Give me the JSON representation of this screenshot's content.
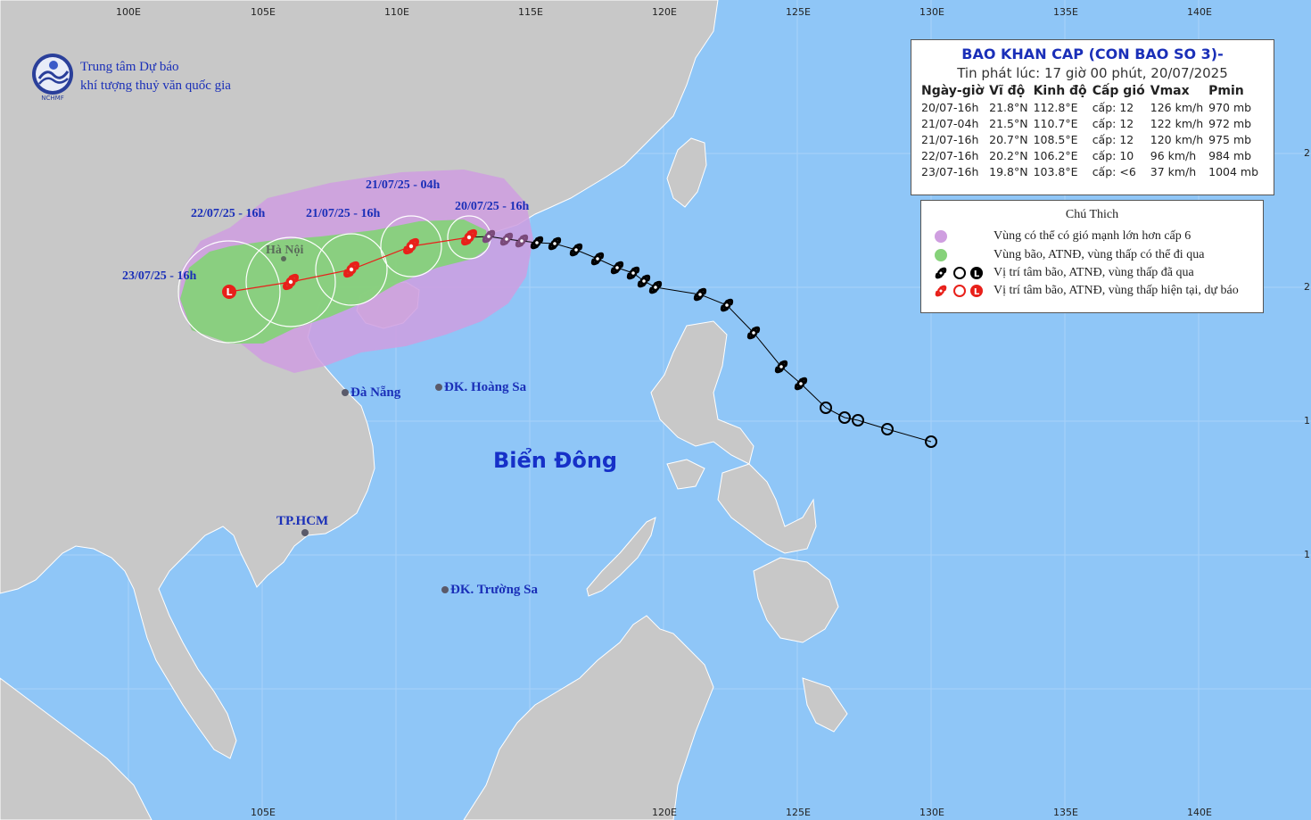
{
  "map": {
    "lon_labels": [
      "100E",
      "105E",
      "110E",
      "115E",
      "120E",
      "125E",
      "130E",
      "135E",
      "140E"
    ],
    "lat_labels": [
      "2",
      "2",
      "1",
      "1"
    ],
    "colors": {
      "sea": "#8fc6f7",
      "land": "#c8c8c8",
      "strong_wind_zone": "#cf9ee0",
      "storm_zone": "#8ad17a",
      "past_track": "#000000",
      "forecast_track": "#e8201a"
    }
  },
  "org": {
    "line1": "Trung tâm Dự báo",
    "line2": "khí tượng thuỷ văn quốc gia",
    "logo_text": "NCHMF"
  },
  "bulletin": {
    "title": "BAO KHAN CAP (CON BAO SO 3)-",
    "issued": "Tin phát lúc: 17 giờ 00 phút, 20/07/2025",
    "headers": [
      "Ngày-giờ",
      "Vĩ độ",
      "Kinh độ",
      "Cấp gió",
      "Vmax",
      "Pmin"
    ],
    "rows": [
      [
        "20/07-16h",
        "21.8°N",
        "112.8°E",
        "cấp: 12",
        "126 km/h",
        "970 mb"
      ],
      [
        "21/07-04h",
        "21.5°N",
        "110.7°E",
        "cấp: 12",
        "122 km/h",
        "972 mb"
      ],
      [
        "21/07-16h",
        "20.7°N",
        "108.5°E",
        "cấp: 12",
        "120 km/h",
        "975 mb"
      ],
      [
        "22/07-16h",
        "20.2°N",
        "106.2°E",
        "cấp: 10",
        "96 km/h",
        "984 mb"
      ],
      [
        "23/07-16h",
        "19.8°N",
        "103.8°E",
        "cấp: <6",
        "37 km/h",
        "1004 mb"
      ]
    ]
  },
  "legend": {
    "title": "Chú Thich",
    "items": [
      {
        "text": "Vùng có thể có gió mạnh lớn hơn cấp 6",
        "icon": "purple-dot-icon"
      },
      {
        "text": "Vùng bão, ATNĐ, vùng thấp có thể đi qua",
        "icon": "green-dot-icon"
      },
      {
        "text": "Vị trí tâm bão, ATNĐ, vùng thấp đã qua",
        "icon": "black-storm-symbols-icon"
      },
      {
        "text": "Vị trí tâm bão, ATNĐ, vùng thấp hiện tại, dự báo",
        "icon": "red-storm-symbols-icon"
      }
    ]
  },
  "labels": {
    "t1": "20/07/25 - 16h",
    "t2": "21/07/25 - 04h",
    "t3": "21/07/25 - 16h",
    "t4": "22/07/25 - 16h",
    "t5": "23/07/25 - 16h",
    "hanoi": "Hà Nội",
    "danang": "Đà Nẵng",
    "hoangsa": "ĐK. Hoàng Sa",
    "hcm": "TP.HCM",
    "truongsa": "ĐK. Trường Sa",
    "sea": "Biển Đông"
  }
}
